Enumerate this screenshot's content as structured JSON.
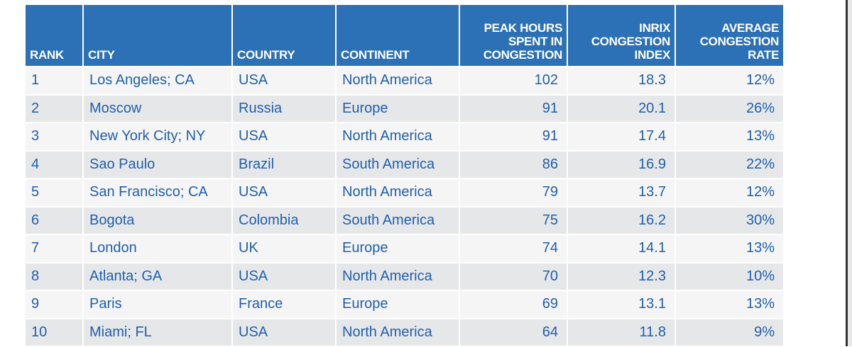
{
  "headers": [
    "RANK",
    "CITY",
    "COUNTRY",
    "CONTINENT",
    "PEAK HOURS SPENT IN CONGESTION",
    "INRIX CONGESTION INDEX",
    "AVERAGE CONGESTION RATE"
  ],
  "rows": [
    [
      "1",
      "Los Angeles; CA",
      "USA",
      "North America",
      "102",
      "18.3",
      "12%"
    ],
    [
      "2",
      "Moscow",
      "Russia",
      "Europe",
      "91",
      "20.1",
      "26%"
    ],
    [
      "3",
      "New York City; NY",
      "USA",
      "North America",
      "91",
      "17.4",
      "13%"
    ],
    [
      "4",
      "Sao Paulo",
      "Brazil",
      "South America",
      "86",
      "16.9",
      "22%"
    ],
    [
      "5",
      "San Francisco; CA",
      "USA",
      "North America",
      "79",
      "13.7",
      "12%"
    ],
    [
      "6",
      "Bogota",
      "Colombia",
      "South America",
      "75",
      "16.2",
      "30%"
    ],
    [
      "7",
      "London",
      "UK",
      "Europe",
      "74",
      "14.1",
      "13%"
    ],
    [
      "8",
      "Atlanta; GA",
      "USA",
      "North America",
      "70",
      "12.3",
      "10%"
    ],
    [
      "9",
      "Paris",
      "France",
      "Europe",
      "69",
      "13.1",
      "13%"
    ],
    [
      "10",
      "Miami; FL",
      "USA",
      "North America",
      "64",
      "11.8",
      "9%"
    ]
  ],
  "colors": {
    "header": "#2c70b5",
    "text": "#1f5fae",
    "row_light": "#f5f5f5",
    "row_dark": "#e6e7e9"
  }
}
